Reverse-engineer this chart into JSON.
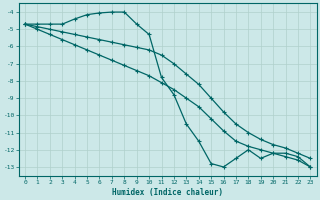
{
  "xlabel": "Humidex (Indice chaleur)",
  "ylabel": "",
  "background_color": "#cce8e8",
  "grid_color": "#b0d0cc",
  "line_color": "#006666",
  "xlim": [
    -0.5,
    23.5
  ],
  "ylim": [
    -13.5,
    -3.5
  ],
  "yticks": [
    -4,
    -5,
    -6,
    -7,
    -8,
    -9,
    -10,
    -11,
    -12,
    -13
  ],
  "xticks": [
    0,
    1,
    2,
    3,
    4,
    5,
    6,
    7,
    8,
    9,
    10,
    11,
    12,
    13,
    14,
    15,
    16,
    17,
    18,
    19,
    20,
    21,
    22,
    23
  ],
  "series": [
    {
      "x": [
        0,
        1,
        2,
        3,
        4,
        5,
        6,
        7,
        8,
        9,
        10,
        11,
        12,
        13,
        14,
        15,
        16,
        17,
        18,
        19,
        20,
        21,
        22,
        23
      ],
      "y": [
        -4.7,
        -4.7,
        -4.7,
        -4.7,
        -4.4,
        -4.15,
        -4.05,
        -4.0,
        -4.0,
        -4.7,
        -5.3,
        -7.8,
        -8.8,
        -10.5,
        -11.5,
        -12.8,
        -13.0,
        -12.5,
        -12.0,
        -12.5,
        -12.2,
        -12.2,
        -12.4,
        -13.0
      ]
    },
    {
      "x": [
        0,
        1,
        2,
        3,
        4,
        5,
        6,
        7,
        8,
        9,
        10,
        11,
        12,
        13,
        14,
        15,
        16,
        17,
        18,
        19,
        20,
        21,
        22,
        23
      ],
      "y": [
        -4.7,
        -4.85,
        -5.0,
        -5.15,
        -5.3,
        -5.45,
        -5.6,
        -5.75,
        -5.9,
        -6.05,
        -6.2,
        -6.5,
        -7.0,
        -7.6,
        -8.2,
        -9.0,
        -9.8,
        -10.5,
        -11.0,
        -11.4,
        -11.7,
        -11.9,
        -12.2,
        -12.5
      ]
    },
    {
      "x": [
        0,
        1,
        2,
        3,
        4,
        5,
        6,
        7,
        8,
        9,
        10,
        11,
        12,
        13,
        14,
        15,
        16,
        17,
        18,
        19,
        20,
        21,
        22,
        23
      ],
      "y": [
        -4.7,
        -5.0,
        -5.3,
        -5.6,
        -5.9,
        -6.2,
        -6.5,
        -6.8,
        -7.1,
        -7.4,
        -7.7,
        -8.1,
        -8.5,
        -9.0,
        -9.5,
        -10.2,
        -10.9,
        -11.5,
        -11.8,
        -12.0,
        -12.2,
        -12.4,
        -12.6,
        -13.0
      ]
    }
  ]
}
